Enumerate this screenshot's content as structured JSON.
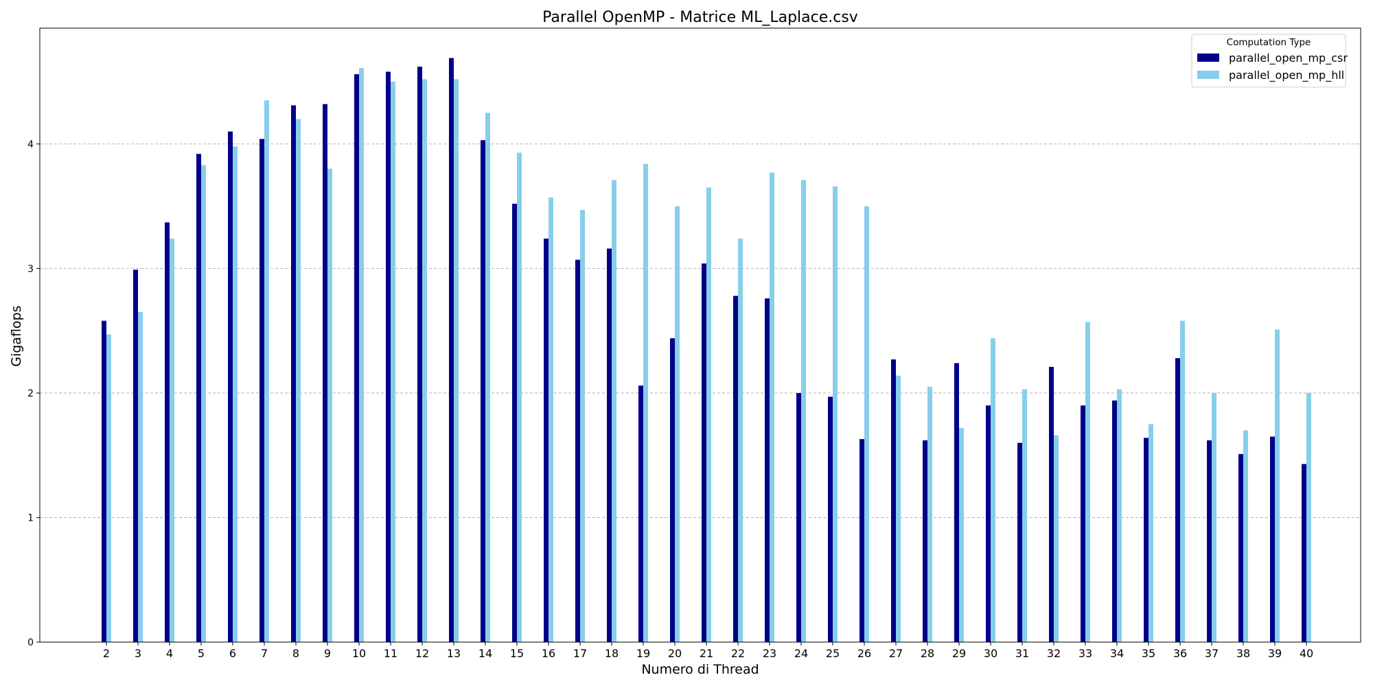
{
  "chart_data": {
    "type": "bar",
    "title": "Parallel OpenMP - Matrice ML_Laplace.csv",
    "xlabel": "Numero di Thread",
    "ylabel": "Gigaflops",
    "ylim": [
      0,
      4.93
    ],
    "yticks": [
      0,
      1,
      2,
      3,
      4
    ],
    "grid": "y-dashed",
    "legend": {
      "title": "Computation Type",
      "placement": "top-right"
    },
    "categories": [
      "2",
      "3",
      "4",
      "5",
      "6",
      "7",
      "8",
      "9",
      "10",
      "11",
      "12",
      "13",
      "14",
      "15",
      "16",
      "17",
      "18",
      "19",
      "20",
      "21",
      "22",
      "23",
      "24",
      "25",
      "26",
      "27",
      "28",
      "29",
      "30",
      "31",
      "32",
      "33",
      "34",
      "35",
      "36",
      "37",
      "38",
      "39",
      "40"
    ],
    "series": [
      {
        "name": "parallel_open_mp_csr",
        "color": "#00008b",
        "values": [
          2.58,
          2.99,
          3.37,
          3.92,
          4.1,
          4.04,
          4.31,
          4.32,
          4.56,
          4.58,
          4.62,
          4.69,
          4.03,
          3.52,
          3.24,
          3.07,
          3.16,
          2.06,
          2.44,
          3.04,
          2.78,
          2.76,
          2.0,
          1.97,
          1.63,
          2.27,
          1.62,
          2.24,
          1.9,
          1.6,
          2.21,
          1.9,
          1.94,
          1.64,
          2.28,
          1.62,
          1.51,
          1.65,
          1.43
        ]
      },
      {
        "name": "parallel_open_mp_hll",
        "color": "#87ceeb",
        "values": [
          2.47,
          2.65,
          3.24,
          3.83,
          3.98,
          4.35,
          4.2,
          3.8,
          4.61,
          4.5,
          4.52,
          4.52,
          4.25,
          3.93,
          3.57,
          3.47,
          3.71,
          3.84,
          3.5,
          3.65,
          3.24,
          3.77,
          3.71,
          3.66,
          3.5,
          2.14,
          2.05,
          1.72,
          2.44,
          2.03,
          1.66,
          2.57,
          2.03,
          1.75,
          2.58,
          2.0,
          1.7,
          2.51,
          2.0
        ]
      }
    ]
  }
}
